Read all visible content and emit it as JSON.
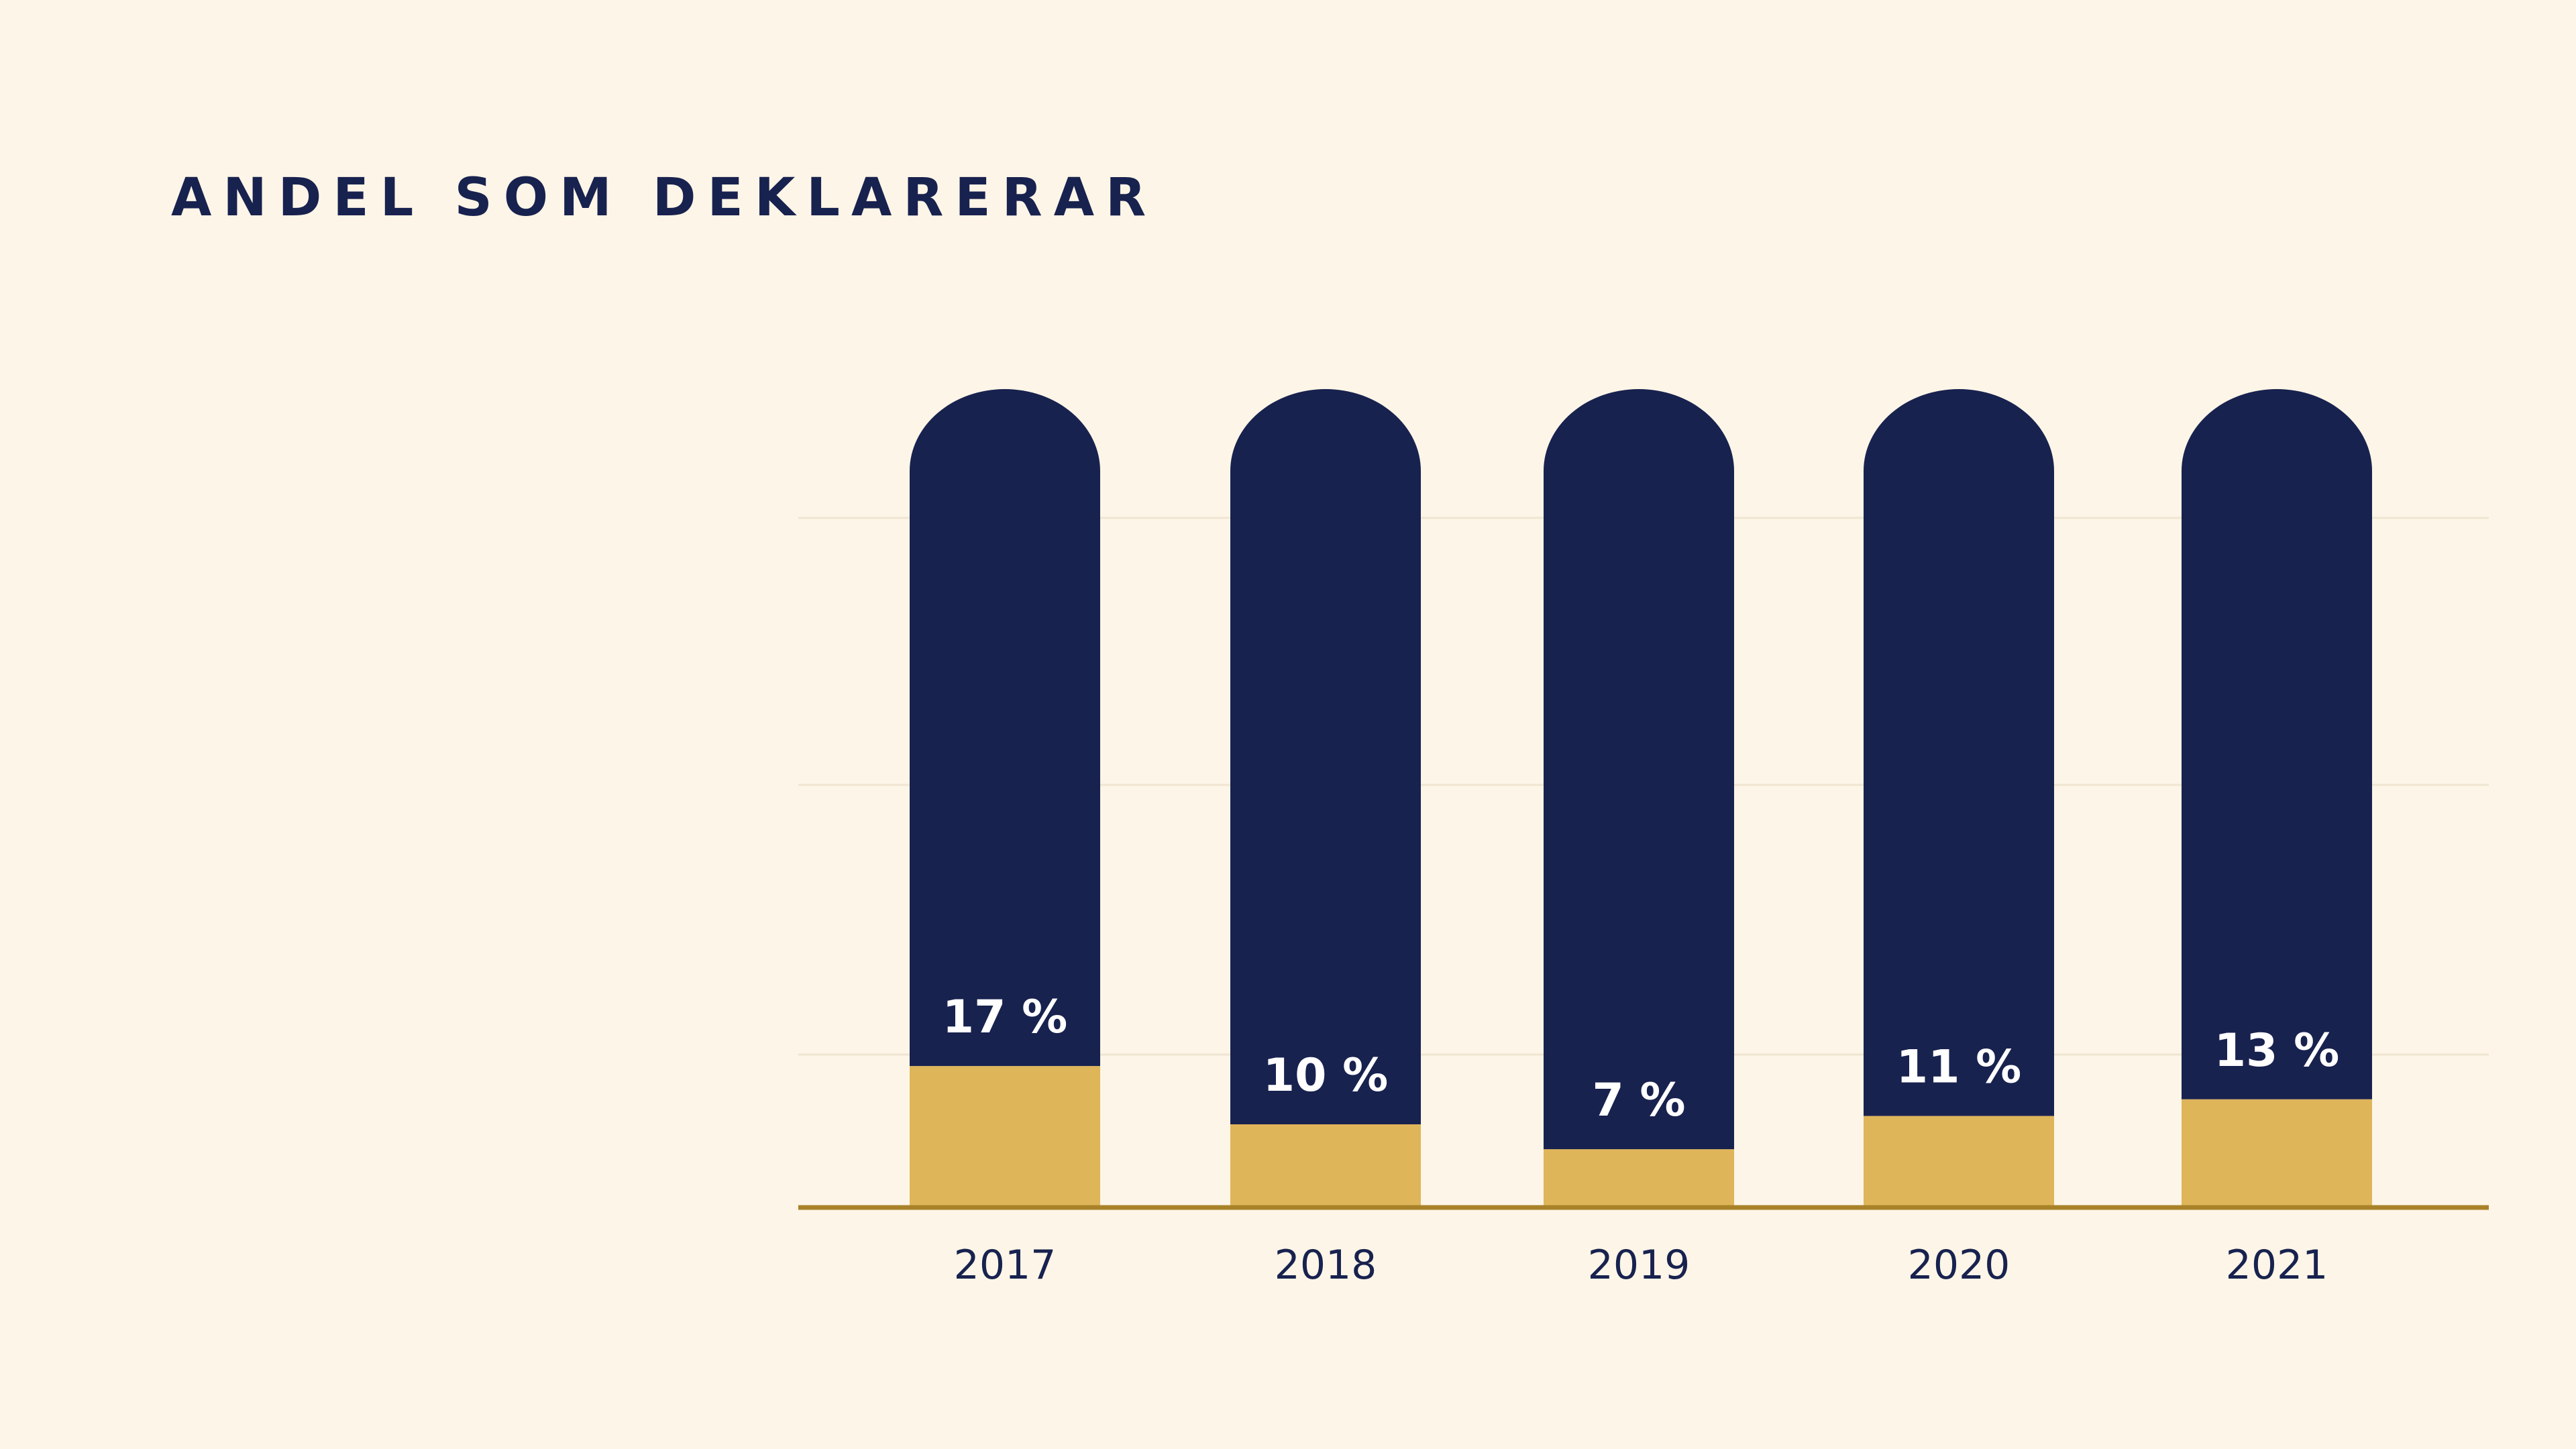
{
  "chart_data": {
    "type": "bar",
    "stacked": true,
    "title": "ANDEL SOM DEKLARERAR",
    "categories": [
      "2017",
      "2018",
      "2019",
      "2020",
      "2021"
    ],
    "values": [
      17,
      10,
      7,
      11,
      13
    ],
    "value_labels": [
      "17 %",
      "10 %",
      "7 %",
      "11 %",
      "13 %"
    ],
    "total": 100,
    "ylim": [
      0,
      100
    ],
    "grid": true,
    "legend": "none",
    "colors": {
      "value_segment": "#DFB55A",
      "remainder_segment": "#18224F",
      "baseline": "#A88128",
      "gridline": "#EFE5D2",
      "label_text": "#FFFFFF",
      "axis_text": "#18224F",
      "background": "#FDF5E7"
    }
  }
}
